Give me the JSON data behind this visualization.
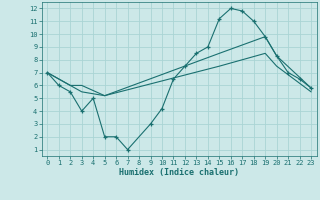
{
  "title": "",
  "xlabel": "Humidex (Indice chaleur)",
  "ylabel": "",
  "bg_color": "#cce8e8",
  "grid_color": "#aad4d4",
  "line_color": "#1a7070",
  "xlim": [
    -0.5,
    23.5
  ],
  "ylim": [
    0.5,
    12.5
  ],
  "xticks": [
    0,
    1,
    2,
    3,
    4,
    5,
    6,
    7,
    8,
    9,
    10,
    11,
    12,
    13,
    14,
    15,
    16,
    17,
    18,
    19,
    20,
    21,
    22,
    23
  ],
  "yticks": [
    1,
    2,
    3,
    4,
    5,
    6,
    7,
    8,
    9,
    10,
    11,
    12
  ],
  "series": [
    {
      "x": [
        0,
        1,
        2,
        3,
        4,
        5,
        6,
        7,
        9,
        10,
        11,
        12,
        13,
        14,
        15,
        16,
        17,
        18,
        19,
        20,
        21,
        22,
        23
      ],
      "y": [
        7,
        6,
        5.5,
        4,
        5,
        2,
        2,
        1,
        3,
        4.2,
        6.5,
        7.5,
        8.5,
        9,
        11.2,
        12,
        11.8,
        11,
        9.8,
        8.3,
        7,
        6.5,
        5.8
      ],
      "marker": "+"
    },
    {
      "x": [
        0,
        2,
        3,
        5,
        15,
        19,
        20,
        23
      ],
      "y": [
        7,
        6,
        6,
        5.2,
        8.5,
        9.8,
        8.3,
        5.8
      ],
      "marker": null
    },
    {
      "x": [
        0,
        2,
        3,
        5,
        15,
        19,
        20,
        23
      ],
      "y": [
        7,
        6,
        5.5,
        5.2,
        7.5,
        8.5,
        7.5,
        5.5
      ],
      "marker": null
    }
  ]
}
